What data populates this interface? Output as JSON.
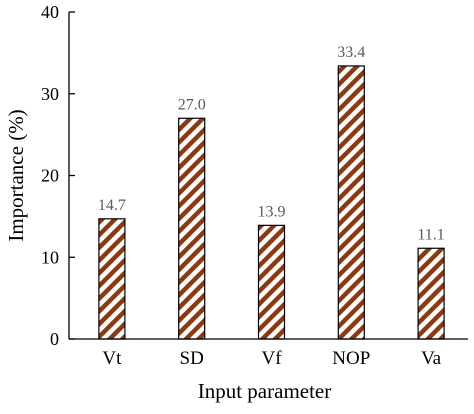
{
  "chart_data": {
    "type": "bar",
    "title": "",
    "xlabel": "Input parameter",
    "ylabel": "Importance (%)",
    "categories": [
      "Vt",
      "SD",
      "Vf",
      "NOP",
      "Va"
    ],
    "values": [
      14.7,
      27.0,
      13.9,
      33.4,
      11.1
    ],
    "data_labels": [
      "14.7",
      "27.0",
      "13.9",
      "33.4",
      "11.1"
    ],
    "ylim": [
      0,
      40
    ],
    "yticks": [
      "0",
      "10",
      "20",
      "30",
      "40"
    ],
    "grid": false,
    "legend": "none",
    "bar_pattern": "diagonal-hatch",
    "colors": {
      "hatch": "#8B3A10",
      "bar_fill": "#ffffff",
      "axis": "#000000",
      "data_label": "#595959"
    }
  }
}
